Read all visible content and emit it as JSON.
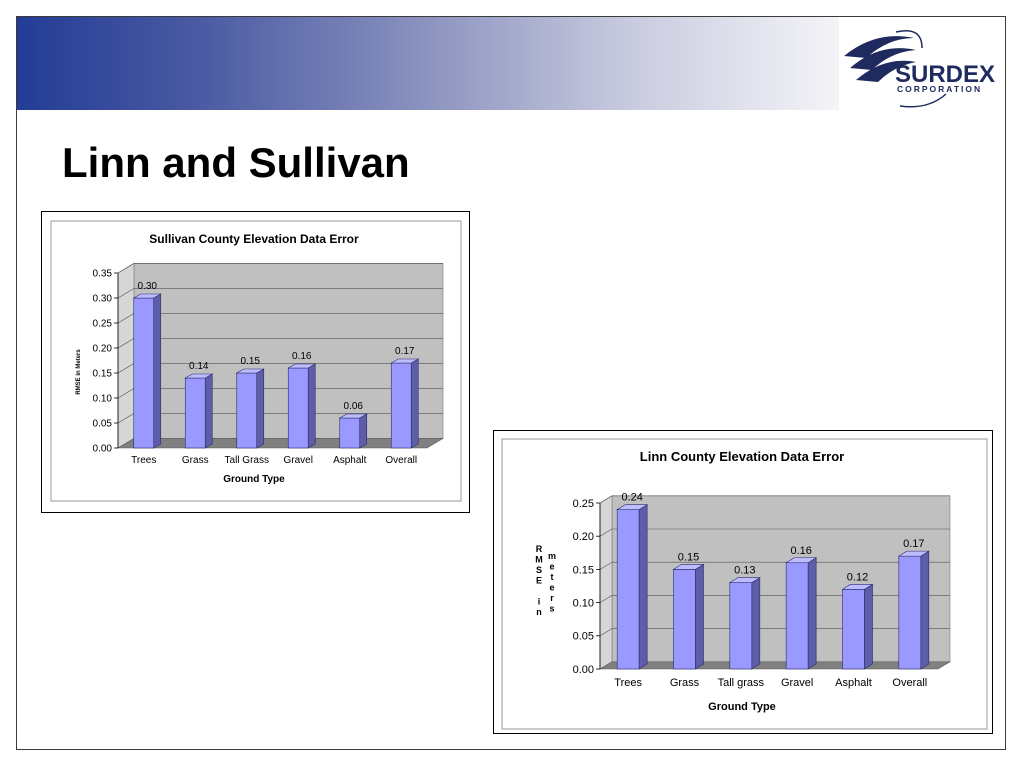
{
  "slide": {
    "title": "Linn and Sullivan",
    "logo": {
      "name": "SURDEX",
      "sub": "CORPORATION",
      "icon": "surdex-swoosh-icon"
    }
  },
  "colors": {
    "bar_front": "#9999ff",
    "bar_side": "#5e5ea8",
    "bar_top": "#bcbcff",
    "plot_wall": "#c0c0c0",
    "floor": "#808080",
    "brand": "#1f2a5f"
  },
  "chart_data": [
    {
      "type": "bar",
      "title": "Sullivan County Elevation Data Error",
      "xlabel": "Ground Type",
      "ylabel": "RMSE in Meters",
      "categories": [
        "Trees",
        "Grass",
        "Tall Grass",
        "Gravel",
        "Asphalt",
        "Overall"
      ],
      "values": [
        0.3,
        0.14,
        0.15,
        0.16,
        0.06,
        0.17
      ],
      "value_labels": [
        "0.30",
        "0.14",
        "0.15",
        "0.16",
        "0.06",
        "0.17"
      ],
      "ylim": [
        0,
        0.35
      ],
      "yticks": [
        "0.00",
        "0.05",
        "0.10",
        "0.15",
        "0.20",
        "0.25",
        "0.30",
        "0.35"
      ],
      "grid": true,
      "style": "3d"
    },
    {
      "type": "bar",
      "title": "Linn County Elevation Data Error",
      "xlabel": "Ground Type",
      "ylabel": "RMSE in meters",
      "categories": [
        "Trees",
        "Grass",
        "Tall grass",
        "Gravel",
        "Asphalt",
        "Overall"
      ],
      "values": [
        0.24,
        0.15,
        0.13,
        0.16,
        0.12,
        0.17
      ],
      "value_labels": [
        "0.24",
        "0.15",
        "0.13",
        "0.16",
        "0.12",
        "0.17"
      ],
      "ylim": [
        0,
        0.25
      ],
      "yticks": [
        "0.00",
        "0.05",
        "0.10",
        "0.15",
        "0.20",
        "0.25"
      ],
      "grid": true,
      "style": "3d"
    }
  ]
}
